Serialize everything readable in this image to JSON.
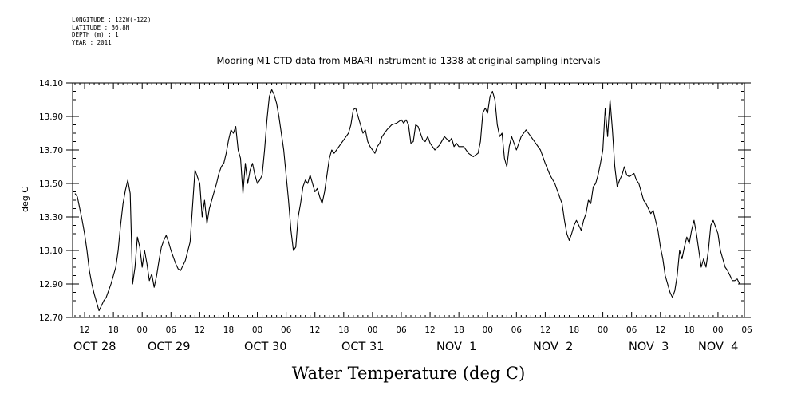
{
  "meta_lines": [
    "LONGITUDE : 122W(-122)",
    "LATITUDE : 36.8N",
    "DEPTH (m) : 1",
    "YEAR : 2011"
  ],
  "chart_data": {
    "type": "line",
    "title": "Mooring M1 CTD data from MBARI instrument id 1338 at original sampling intervals",
    "xlabel": "Water Temperature (deg C)",
    "ylabel": "deg C",
    "ylim": [
      12.7,
      14.1
    ],
    "yticks": [
      "12.70",
      "12.90",
      "13.10",
      "13.30",
      "13.50",
      "13.70",
      "13.90",
      "14.10"
    ],
    "xlim_hours": [
      9.5,
      149.5
    ],
    "hour_ticks": [
      {
        "h": 12,
        "label": "12"
      },
      {
        "h": 18,
        "label": "18"
      },
      {
        "h": 24,
        "label": "00"
      },
      {
        "h": 30,
        "label": "06"
      },
      {
        "h": 36,
        "label": "12"
      },
      {
        "h": 42,
        "label": "18"
      },
      {
        "h": 48,
        "label": "00"
      },
      {
        "h": 54,
        "label": "06"
      },
      {
        "h": 60,
        "label": "12"
      },
      {
        "h": 66,
        "label": "18"
      },
      {
        "h": 72,
        "label": "00"
      },
      {
        "h": 78,
        "label": "06"
      },
      {
        "h": 84,
        "label": "12"
      },
      {
        "h": 90,
        "label": "18"
      },
      {
        "h": 96,
        "label": "00"
      },
      {
        "h": 102,
        "label": "06"
      },
      {
        "h": 108,
        "label": "12"
      },
      {
        "h": 114,
        "label": "18"
      },
      {
        "h": 120,
        "label": "00"
      },
      {
        "h": 126,
        "label": "06"
      },
      {
        "h": 132,
        "label": "12"
      },
      {
        "h": 138,
        "label": "18"
      },
      {
        "h": 144,
        "label": "00"
      },
      {
        "h": 150,
        "label": "06"
      }
    ],
    "date_labels": [
      {
        "h": 11,
        "label": "OCT 28"
      },
      {
        "h": 30,
        "label": "OCT 29"
      },
      {
        "h": 54,
        "label": "OCT 30"
      },
      {
        "h": 78,
        "label": "OCT 31"
      },
      {
        "h": 102,
        "label": "NOV  1"
      },
      {
        "h": 126,
        "label": "NOV  2"
      },
      {
        "h": 150,
        "label": "NOV  3"
      },
      {
        "h": 168,
        "label": "NOV  4"
      }
    ],
    "series": [
      {
        "x_hours": [
          10.0,
          10.5,
          11.0,
          11.5,
          12.0,
          12.5,
          13.0,
          13.5,
          14.0,
          14.5,
          15.0,
          15.5,
          16.0,
          16.5,
          17.0,
          17.5,
          18.0,
          18.5,
          19.0,
          19.5,
          20.0,
          20.5,
          21.0,
          21.5,
          22.0,
          22.5,
          23.0,
          23.5,
          24.0,
          24.5,
          25.0,
          25.5,
          26.0,
          26.5,
          27.0,
          27.5,
          28.0,
          28.5,
          29.0,
          29.5,
          30.0,
          30.5,
          31.0,
          31.5,
          32.0,
          33.0,
          34.0,
          35.0,
          36.0,
          36.5,
          37.0,
          37.5,
          38.0,
          38.5,
          39.0,
          39.5,
          40.0,
          40.5,
          41.0,
          41.5,
          42.0,
          42.5,
          43.0,
          43.5,
          44.0,
          44.5,
          45.0,
          45.5,
          46.0,
          46.5,
          47.0,
          47.5,
          48.0,
          48.5,
          49.0,
          49.5,
          50.0,
          50.5,
          51.0,
          51.5,
          52.0,
          52.5,
          53.0,
          53.5,
          54.0,
          54.5,
          55.0,
          55.5,
          56.0,
          56.5,
          57.0,
          57.5,
          58.0,
          58.5,
          59.0,
          59.5,
          60.0,
          60.5,
          61.0,
          61.5,
          62.0,
          62.5,
          63.0,
          63.5,
          64.0,
          64.5,
          65.0,
          65.5,
          66.0,
          66.5,
          67.0,
          67.5,
          68.0,
          68.5,
          69.0,
          69.5,
          70.0,
          70.5,
          71.0,
          71.5,
          72.0,
          72.5,
          73.0,
          73.5,
          74.0,
          75.0,
          76.0,
          77.0,
          78.0,
          78.5,
          79.0,
          79.5,
          80.0,
          80.5,
          81.0,
          81.5,
          82.0,
          82.5,
          83.0,
          83.5,
          84.0,
          85.0,
          86.0,
          87.0,
          88.0,
          88.5,
          89.0,
          89.5,
          90.0,
          91.0,
          92.0,
          93.0,
          94.0,
          94.5,
          95.0,
          95.5,
          96.0,
          96.5,
          97.0,
          97.5,
          98.0,
          98.5,
          99.0,
          99.5,
          100.0,
          100.5,
          101.0,
          102.0,
          103.0,
          104.0,
          105.0,
          106.0,
          107.0,
          108.0,
          109.0,
          110.0,
          111.0,
          111.5,
          112.0,
          112.5,
          113.0,
          113.5,
          114.0,
          114.5,
          115.0,
          115.5,
          116.0,
          116.5,
          117.0,
          117.5,
          118.0,
          118.5,
          119.0,
          119.5,
          120.0,
          120.5,
          121.0,
          121.5,
          122.0,
          122.5,
          123.0,
          123.5,
          124.0,
          124.5,
          125.0,
          125.5,
          126.0,
          126.5,
          127.0,
          127.5,
          128.0,
          128.5,
          129.0,
          129.5,
          130.0,
          130.5,
          131.0,
          131.5,
          132.0,
          132.5,
          133.0,
          133.5,
          134.0,
          134.5,
          135.0,
          135.5,
          136.0,
          136.5,
          137.0,
          137.5,
          138.0,
          138.5,
          139.0,
          139.5,
          140.0,
          140.5,
          141.0,
          141.5,
          142.0,
          142.5,
          143.0,
          143.5,
          144.0,
          144.5,
          145.0,
          145.5,
          146.0,
          146.5,
          147.0,
          147.5,
          148.0,
          148.5,
          149.0
        ],
        "values": [
          13.44,
          13.42,
          13.35,
          13.28,
          13.2,
          13.1,
          12.98,
          12.9,
          12.84,
          12.79,
          12.74,
          12.77,
          12.8,
          12.82,
          12.86,
          12.9,
          12.95,
          13.0,
          13.1,
          13.25,
          13.38,
          13.46,
          13.52,
          13.44,
          12.9,
          13.0,
          13.18,
          13.12,
          13.0,
          13.1,
          13.02,
          12.92,
          12.96,
          12.88,
          12.95,
          13.04,
          13.12,
          13.16,
          13.19,
          13.15,
          13.1,
          13.06,
          13.02,
          12.99,
          12.98,
          13.04,
          13.15,
          13.58,
          13.5,
          13.3,
          13.4,
          13.26,
          13.35,
          13.4,
          13.45,
          13.5,
          13.56,
          13.6,
          13.62,
          13.68,
          13.76,
          13.82,
          13.8,
          13.84,
          13.7,
          13.65,
          13.44,
          13.62,
          13.5,
          13.58,
          13.62,
          13.55,
          13.5,
          13.52,
          13.55,
          13.7,
          13.88,
          14.02,
          14.06,
          14.03,
          13.98,
          13.9,
          13.8,
          13.7,
          13.55,
          13.4,
          13.22,
          13.1,
          13.12,
          13.3,
          13.38,
          13.48,
          13.52,
          13.5,
          13.55,
          13.5,
          13.45,
          13.47,
          13.42,
          13.38,
          13.45,
          13.55,
          13.65,
          13.7,
          13.68,
          13.7,
          13.72,
          13.74,
          13.76,
          13.78,
          13.8,
          13.85,
          13.94,
          13.95,
          13.9,
          13.85,
          13.8,
          13.82,
          13.75,
          13.72,
          13.7,
          13.68,
          13.72,
          13.74,
          13.78,
          13.82,
          13.85,
          13.86,
          13.88,
          13.86,
          13.88,
          13.85,
          13.74,
          13.75,
          13.85,
          13.84,
          13.8,
          13.76,
          13.75,
          13.78,
          13.74,
          13.7,
          13.73,
          13.78,
          13.75,
          13.77,
          13.72,
          13.74,
          13.72,
          13.72,
          13.68,
          13.66,
          13.68,
          13.75,
          13.92,
          13.95,
          13.92,
          14.02,
          14.05,
          14.0,
          13.85,
          13.78,
          13.8,
          13.65,
          13.6,
          13.72,
          13.78,
          13.7,
          13.78,
          13.82,
          13.78,
          13.74,
          13.7,
          13.62,
          13.55,
          13.5,
          13.42,
          13.38,
          13.28,
          13.2,
          13.16,
          13.2,
          13.25,
          13.28,
          13.25,
          13.22,
          13.28,
          13.32,
          13.4,
          13.38,
          13.48,
          13.5,
          13.55,
          13.62,
          13.7,
          13.95,
          13.78,
          14.0,
          13.82,
          13.6,
          13.48,
          13.52,
          13.55,
          13.6,
          13.55,
          13.54,
          13.55,
          13.56,
          13.52,
          13.5,
          13.45,
          13.4,
          13.38,
          13.35,
          13.32,
          13.34,
          13.28,
          13.22,
          13.12,
          13.05,
          12.95,
          12.9,
          12.85,
          12.82,
          12.86,
          12.95,
          13.1,
          13.05,
          13.12,
          13.18,
          13.14,
          13.22,
          13.28,
          13.2,
          13.1,
          13.0,
          13.05,
          13.0,
          13.1,
          13.25,
          13.28,
          13.24,
          13.2,
          13.1,
          13.05,
          13.0,
          12.98,
          12.95,
          12.92,
          12.92,
          12.93,
          12.9,
          12.9
        ]
      }
    ],
    "grid": false,
    "legend": "none"
  }
}
